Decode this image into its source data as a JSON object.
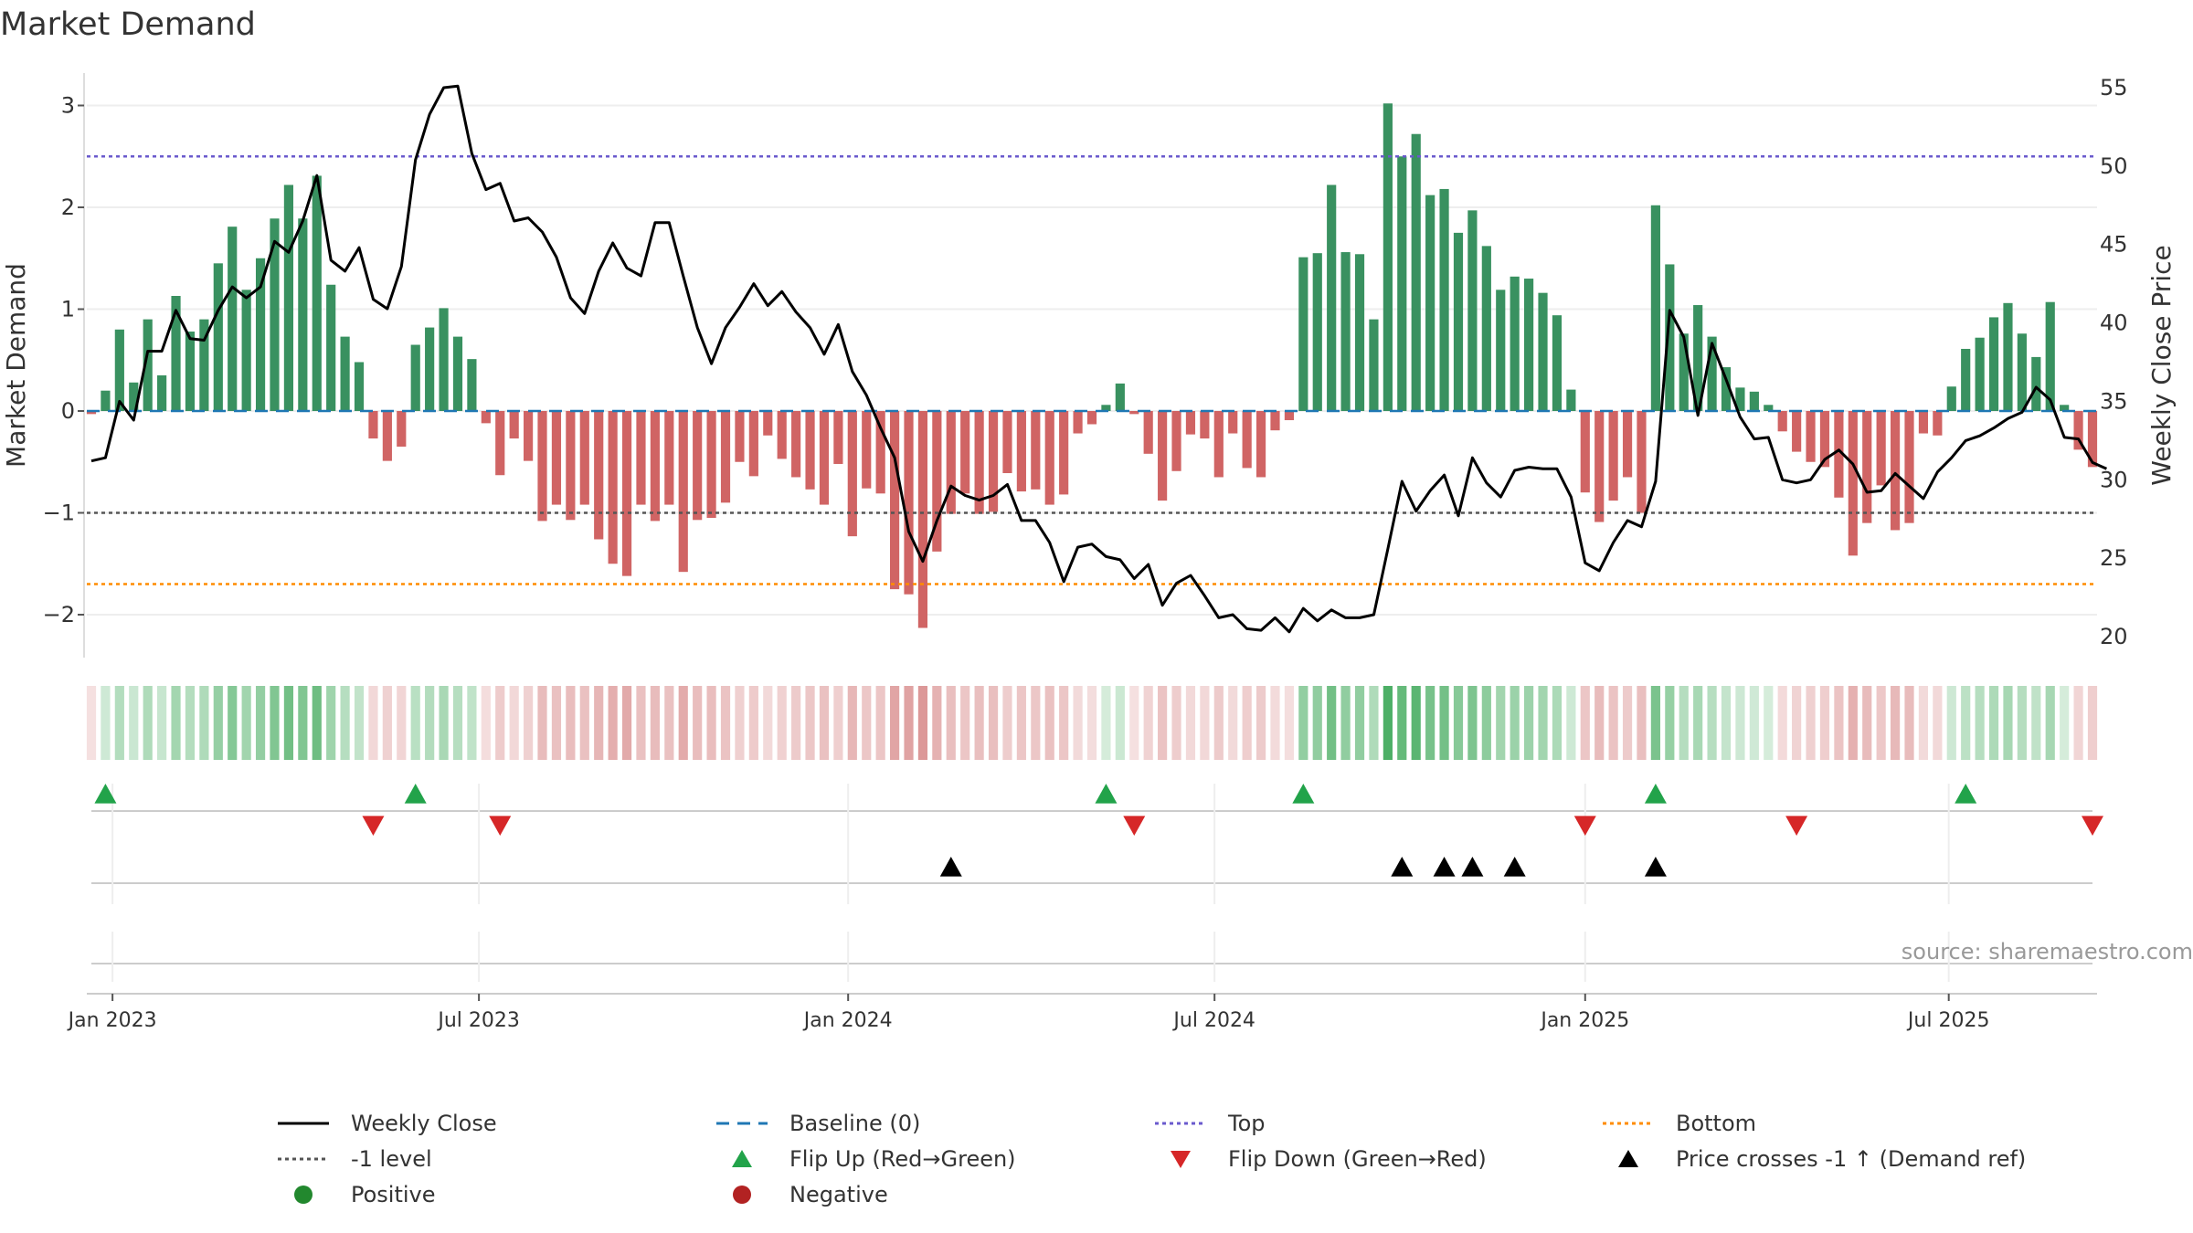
{
  "chart_data": {
    "type": "bar+line",
    "title": "Market Demand",
    "ylabel_left": "Market Demand",
    "ylabel_right": "Weekly Close Price",
    "ylim_left": [
      -2.4,
      3.2
    ],
    "ylim_right": [
      18.5,
      56
    ],
    "left_ticks": [
      "−2",
      "−1",
      "0",
      "1",
      "2",
      "3"
    ],
    "left_tick_values": [
      -2,
      -1,
      0,
      1,
      2,
      3
    ],
    "right_ticks": [
      "20",
      "25",
      "30",
      "35",
      "40",
      "45",
      "50",
      "55"
    ],
    "right_tick_values": [
      20,
      25,
      30,
      35,
      40,
      45,
      50,
      55
    ],
    "x_ticks": [
      {
        "label": "Jan 2023",
        "week": 1.5
      },
      {
        "label": "Jul 2023",
        "week": 27.5
      },
      {
        "label": "Jan 2024",
        "week": 53.7
      },
      {
        "label": "Jul 2024",
        "week": 79.7
      },
      {
        "label": "Jan 2025",
        "week": 106
      },
      {
        "label": "Jul 2025",
        "week": 131.8
      }
    ],
    "reference_lines": {
      "top": 2.5,
      "minus_one": -1,
      "bottom": -1.7,
      "baseline": 0
    },
    "series_demand": [
      -0.03,
      0.2,
      0.8,
      0.28,
      0.9,
      0.35,
      1.13,
      0.78,
      0.9,
      1.45,
      1.81,
      1.19,
      1.5,
      1.89,
      2.22,
      1.89,
      2.31,
      1.24,
      0.73,
      0.48,
      -0.27,
      -0.49,
      -0.35,
      0.65,
      0.82,
      1.01,
      0.73,
      0.51,
      -0.12,
      -0.63,
      -0.27,
      -0.49,
      -1.08,
      -0.92,
      -1.07,
      -0.92,
      -1.26,
      -1.5,
      -1.62,
      -0.92,
      -1.08,
      -0.92,
      -1.58,
      -1.07,
      -1.05,
      -0.9,
      -0.5,
      -0.64,
      -0.24,
      -0.47,
      -0.65,
      -0.77,
      -0.92,
      -0.52,
      -1.23,
      -0.76,
      -0.81,
      -1.75,
      -1.8,
      -2.13,
      -1.38,
      -1.01,
      -0.81,
      -1.01,
      -0.99,
      -0.61,
      -0.79,
      -0.77,
      -0.92,
      -0.82,
      -0.22,
      -0.13,
      0.06,
      0.27,
      -0.03,
      -0.42,
      -0.88,
      -0.59,
      -0.23,
      -0.27,
      -0.65,
      -0.22,
      -0.56,
      -0.65,
      -0.19,
      -0.09,
      1.51,
      1.55,
      2.22,
      1.56,
      1.54,
      0.9,
      3.02,
      2.5,
      2.72,
      2.12,
      2.18,
      1.75,
      1.97,
      1.62,
      1.19,
      1.32,
      1.3,
      1.16,
      0.94,
      0.21,
      -0.8,
      -1.09,
      -0.88,
      -0.65,
      -1.0,
      2.02,
      1.44,
      0.76,
      1.04,
      0.73,
      0.43,
      0.23,
      0.19,
      0.06,
      -0.2,
      -0.4,
      -0.5,
      -0.55,
      -0.85,
      -1.42,
      -1.1,
      -0.73,
      -1.17,
      -1.1,
      -0.22,
      -0.24,
      0.24,
      0.61,
      0.72,
      0.92,
      1.06,
      0.76,
      0.53,
      1.07,
      0.06,
      -0.38,
      -0.55
    ],
    "series_price": [
      31.2,
      31.4,
      35.0,
      33.8,
      38.2,
      38.2,
      40.8,
      39.0,
      38.9,
      40.8,
      42.3,
      41.6,
      42.3,
      45.2,
      44.5,
      46.5,
      49.4,
      44.0,
      43.3,
      44.8,
      41.5,
      40.9,
      43.6,
      50.4,
      53.3,
      55.0,
      55.1,
      50.8,
      48.5,
      48.9,
      46.5,
      46.7,
      45.8,
      44.2,
      41.6,
      40.6,
      43.3,
      45.1,
      43.5,
      43.0,
      46.4,
      46.4,
      43.0,
      39.7,
      37.4,
      39.7,
      41.0,
      42.5,
      41.1,
      42.0,
      40.7,
      39.7,
      38.0,
      39.9,
      36.9,
      35.4,
      33.3,
      31.4,
      26.7,
      24.8,
      27.4,
      29.6,
      29.0,
      28.7,
      29.0,
      29.7,
      27.4,
      27.4,
      26.0,
      23.5,
      25.7,
      25.9,
      25.1,
      24.9,
      23.7,
      24.6,
      22.0,
      23.4,
      23.9,
      22.6,
      21.2,
      21.4,
      20.5,
      20.4,
      21.2,
      20.3,
      21.8,
      21.0,
      21.7,
      21.2,
      21.2,
      21.4,
      25.6,
      29.9,
      28.0,
      29.3,
      30.3,
      27.7,
      31.4,
      29.8,
      28.9,
      30.6,
      30.8,
      30.7,
      30.7,
      28.9,
      24.7,
      24.2,
      26.0,
      27.4,
      27.0,
      29.9,
      40.8,
      39.1,
      34.1,
      38.7,
      36.4,
      34.0,
      32.6,
      32.7,
      30.0,
      29.8,
      30.0,
      31.3,
      31.9,
      31.0,
      29.2,
      29.3,
      30.4,
      29.6,
      28.8,
      30.5,
      31.4,
      32.5,
      32.8,
      33.3,
      33.9,
      34.3,
      35.9,
      35.1,
      32.7,
      32.6,
      31.1,
      30.7
    ]
  },
  "flip_up_weeks": [
    1,
    23,
    72,
    86,
    111,
    133
  ],
  "flip_down_weeks": [
    20,
    29,
    74,
    106,
    121,
    142
  ],
  "price_cross_weeks": [
    61,
    93,
    96,
    98,
    101,
    111
  ],
  "source_label": "source: sharemaestro.com",
  "colors": {
    "positive": "#2e8b57",
    "negative": "#cd5c5c",
    "price_line": "#000000",
    "baseline": "#1f77b4",
    "top_line": "#6a5acd",
    "minus_one_line": "#555555",
    "bottom_line": "#ff8c00",
    "flip_up": "#22a34a",
    "flip_down": "#d62728",
    "cross": "#000000",
    "legend_positive": "#22882e",
    "legend_negative": "#b22222"
  },
  "legend": {
    "weekly_close": "Weekly Close",
    "baseline": "Baseline (0)",
    "top": "Top",
    "bottom": "Bottom",
    "minus_one": "-1 level",
    "flip_up": "Flip Up (Red→Green)",
    "flip_down": "Flip Down (Green→Red)",
    "price_cross": "Price crosses -1 ↑ (Demand ref)",
    "positive": "Positive",
    "negative": "Negative"
  }
}
